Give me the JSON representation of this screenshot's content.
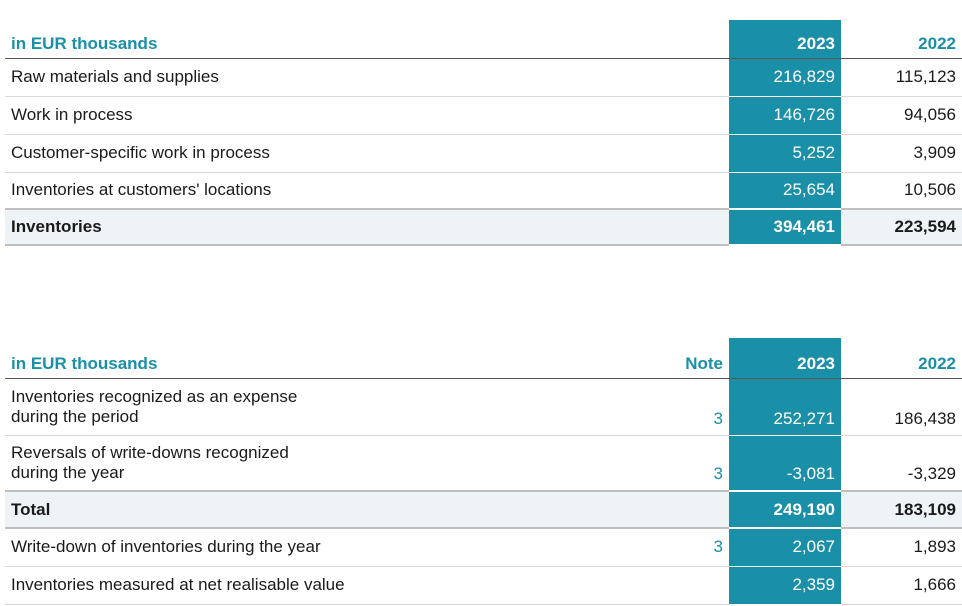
{
  "table1": {
    "unit_label": "in EUR thousands",
    "col_2023": "2023",
    "col_2022": "2022",
    "rows": [
      {
        "label": "Raw materials and supplies",
        "v2023": "216,829",
        "v2022": "115,123"
      },
      {
        "label": "Work in process",
        "v2023": "146,726",
        "v2022": "94,056"
      },
      {
        "label": "Customer-specific work in process",
        "v2023": "5,252",
        "v2022": "3,909"
      },
      {
        "label": "Inventories at customers' locations",
        "v2023": "25,654",
        "v2022": "10,506"
      }
    ],
    "total": {
      "label": "Inventories",
      "v2023": "394,461",
      "v2022": "223,594"
    }
  },
  "table2": {
    "unit_label": "in EUR thousands",
    "col_note": "Note",
    "col_2023": "2023",
    "col_2022": "2022",
    "rows": [
      {
        "label_line1": "Inventories recognized as an expense",
        "label_line2": "during the period",
        "note": "3",
        "v2023": "252,271",
        "v2022": "186,438"
      },
      {
        "label_line1": "Reversals of write-downs recognized",
        "label_line2": "during the year",
        "note": "3",
        "v2023": "-3,081",
        "v2022": "-3,329"
      }
    ],
    "total": {
      "label": "Total",
      "v2023": "249,190",
      "v2022": "183,109"
    },
    "extra_rows": [
      {
        "label": "Write-down of inventories during the year",
        "note": "3",
        "v2023": "2,067",
        "v2022": "1,893"
      },
      {
        "label": "Inventories measured at net realisable value",
        "note": "",
        "v2023": "2,359",
        "v2022": "1,666"
      }
    ]
  }
}
